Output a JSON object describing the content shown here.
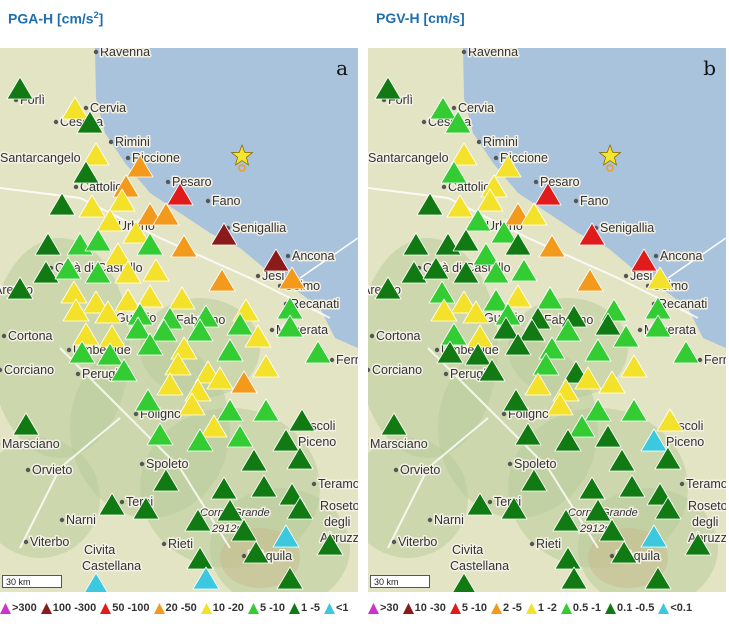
{
  "panels": [
    {
      "id": "a",
      "title_main": "PGA-H [cm/s",
      "title_sup": "2",
      "title_end": "]",
      "letter": "a",
      "scale": "30 km",
      "legend": [
        {
          "label": ">300",
          "color": "#cc33cc"
        },
        {
          "label": "100 -300",
          "color": "#8b1a1a"
        },
        {
          "label": "50 -100",
          "color": "#e01b1b"
        },
        {
          "label": "20 -50",
          "color": "#f39a1d"
        },
        {
          "label": "10 -20",
          "color": "#f4e22a"
        },
        {
          "label": "5 -10",
          "color": "#33cc33"
        },
        {
          "label": "1 -5",
          "color": "#127a12"
        },
        {
          "label": "<1",
          "color": "#3cc8de"
        }
      ]
    },
    {
      "id": "b",
      "title_main": "PGV-H [cm/s]",
      "title_sup": "",
      "title_end": "",
      "letter": "b",
      "scale": "30 km",
      "legend": [
        {
          "label": ">30",
          "color": "#cc33cc"
        },
        {
          "label": "10 -30",
          "color": "#8b1a1a"
        },
        {
          "label": "5 -10",
          "color": "#e01b1b"
        },
        {
          "label": "2 -5",
          "color": "#f39a1d"
        },
        {
          "label": "1 -2",
          "color": "#f4e22a"
        },
        {
          "label": "0.5 -1",
          "color": "#33cc33"
        },
        {
          "label": "0.1 -0.5",
          "color": "#127a12"
        },
        {
          "label": "<0.1",
          "color": "#3cc8de"
        }
      ]
    }
  ],
  "places": [
    "Ravenna",
    "Cervia",
    "Forlì",
    "Cesena",
    "Rimini",
    "Riccione",
    "Santarcangelo",
    "Cattolica",
    "Pesaro",
    "Fano",
    "Urbino",
    "Senigallia",
    "Ancona",
    "Jesi",
    "Osimo",
    "Recanati",
    "Città di Castello",
    "Arezzo",
    "Cortona",
    "Gubbio",
    "Fabriano",
    "Macerata",
    "Umbertide",
    "Fermo",
    "Corciano",
    "Perugia",
    "Foligno",
    "Ascoli Piceno",
    "Marsciano",
    "Orvieto",
    "Spoleto",
    "Teramo",
    "Roseto degli Abruzzi",
    "Narni",
    "Terni",
    "Corno Grande",
    "2912m",
    "Viterbo",
    "Civita Castellana",
    "Rieti",
    "L'Aquila"
  ],
  "icons": {
    "epicenter": "star-icon",
    "station": "triangle-icon"
  }
}
